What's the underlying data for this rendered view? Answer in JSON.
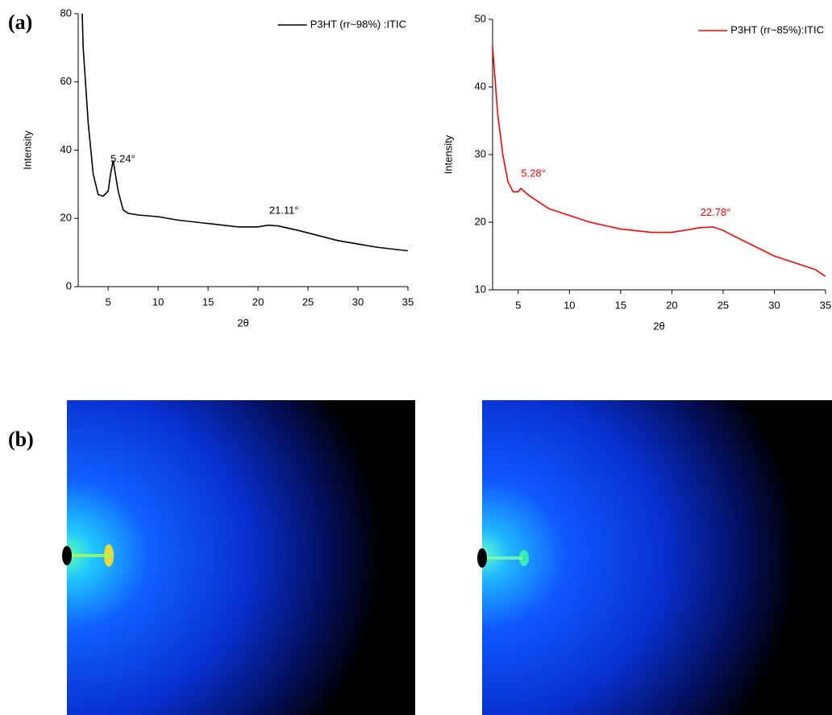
{
  "panel_labels": [
    "(a)",
    "(b)"
  ],
  "chart_data": [
    {
      "type": "line",
      "x_label": "2θ",
      "y_label": "Intensity",
      "x": [
        2.4,
        2.5,
        3,
        3.5,
        4,
        4.5,
        5,
        5.24,
        5.5,
        6,
        6.5,
        7,
        8,
        10,
        12,
        15,
        18,
        20,
        21,
        22,
        24,
        26,
        28,
        30,
        32,
        35
      ],
      "series": [
        {
          "name": "P3HT (rr~98%) :ITIC",
          "color": "#000000",
          "values": [
            80,
            70,
            48,
            33,
            27,
            26.5,
            28,
            33,
            37,
            28,
            22.5,
            21.5,
            21,
            20.5,
            19.5,
            18.5,
            17.5,
            17.5,
            18,
            17.8,
            16.5,
            15,
            13.5,
            12.5,
            11.5,
            10.5
          ]
        }
      ],
      "annotations": [
        {
          "value": 5.24,
          "label": "5.24°"
        },
        {
          "value": 21.11,
          "label": "21.11°"
        }
      ],
      "xlim": [
        2,
        35
      ],
      "xticks": [
        5,
        10,
        15,
        20,
        25,
        30,
        35
      ],
      "ylim": [
        0,
        80
      ],
      "yticks": [
        0,
        20,
        40,
        60,
        80
      ]
    },
    {
      "type": "line",
      "x_label": "2θ",
      "y_label": "Intensity",
      "x": [
        2.5,
        3,
        3.5,
        4,
        4.5,
        5,
        5.28,
        6,
        7,
        8,
        10,
        12,
        15,
        18,
        20,
        22,
        22.78,
        24,
        25,
        26,
        28,
        30,
        32,
        34,
        35
      ],
      "series": [
        {
          "name": "P3HT (rr~85%):ITIC",
          "color": "#ff0000",
          "values": [
            46,
            36,
            30,
            26,
            24.5,
            24.5,
            25,
            24,
            23,
            22,
            21,
            20,
            19,
            18.5,
            18.5,
            19,
            19.2,
            19.3,
            18.8,
            18,
            16.5,
            15,
            14,
            13,
            12
          ]
        }
      ],
      "annotations": [
        {
          "value": 5.28,
          "label": "5.28°"
        },
        {
          "value": 22.78,
          "label": "22.78°"
        }
      ],
      "xlim": [
        2.5,
        35
      ],
      "xticks": [
        5,
        10,
        15,
        20,
        25,
        30,
        35
      ],
      "ylim": [
        10,
        50
      ],
      "yticks": [
        10,
        20,
        30,
        40,
        50
      ]
    }
  ]
}
